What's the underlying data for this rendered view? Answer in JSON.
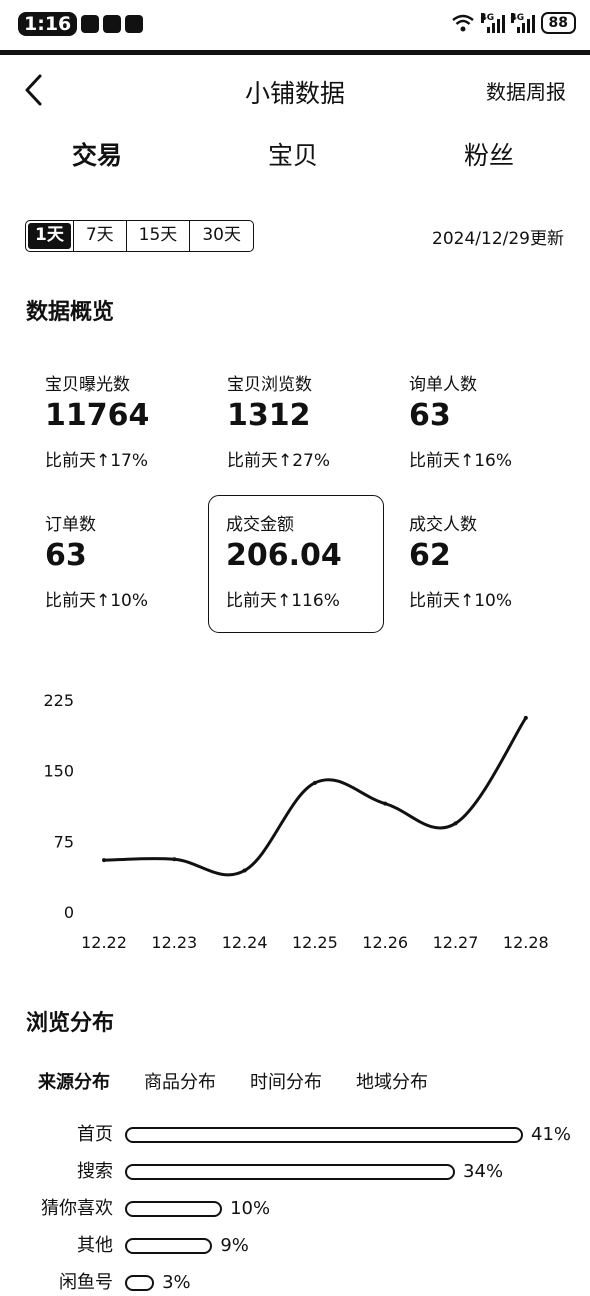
{
  "status_bar": {
    "time": "1:16",
    "signal_1": "4G",
    "signal_2": "4G",
    "battery": "88"
  },
  "header": {
    "title": "小铺数据",
    "report_link": "数据周报"
  },
  "main_tabs": [
    "交易",
    "宝贝",
    "粉丝"
  ],
  "range_options": [
    "1天",
    "7天",
    "15天",
    "30天"
  ],
  "update_text": "2024/12/29更新",
  "overview": {
    "title": "数据概览",
    "metrics": [
      {
        "label": "宝贝曝光数",
        "value": "11764",
        "compare": "比前天↑17%"
      },
      {
        "label": "宝贝浏览数",
        "value": "1312",
        "compare": "比前天↑27%"
      },
      {
        "label": "询单人数",
        "value": "63",
        "compare": "比前天↑16%"
      },
      {
        "label": "订单数",
        "value": "63",
        "compare": "比前天↑10%"
      },
      {
        "label": "成交金额",
        "value": "206.04",
        "compare": "比前天↑116%"
      },
      {
        "label": "成交人数",
        "value": "62",
        "compare": "比前天↑10%"
      }
    ]
  },
  "chart_data": {
    "type": "line",
    "categories": [
      "12.22",
      "12.23",
      "12.24",
      "12.25",
      "12.26",
      "12.27",
      "12.28"
    ],
    "values": [
      55,
      56,
      44,
      137,
      115,
      94,
      206
    ],
    "yticks": [
      "225",
      "150",
      "75",
      "0"
    ],
    "ylim": [
      0,
      225
    ],
    "grid": false
  },
  "browse": {
    "title": "浏览分布",
    "sub_tabs": [
      "来源分布",
      "商品分布",
      "时间分布",
      "地域分布"
    ],
    "distribution": [
      {
        "label": "首页",
        "percent": 41,
        "text": "41%"
      },
      {
        "label": "搜索",
        "percent": 34,
        "text": "34%"
      },
      {
        "label": "猜你喜欢",
        "percent": 10,
        "text": "10%"
      },
      {
        "label": "其他",
        "percent": 9,
        "text": "9%"
      },
      {
        "label": "闲鱼号",
        "percent": 3,
        "text": "3%"
      }
    ]
  }
}
